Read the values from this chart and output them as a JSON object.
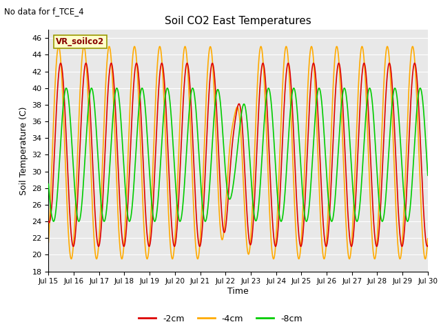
{
  "title": "Soil CO2 East Temperatures",
  "no_data_label": "No data for f_TCE_4",
  "legend_label": "VR_soilco2",
  "xlabel": "Time",
  "ylabel": "Soil Temperature (C)",
  "ylim": [
    18,
    47
  ],
  "yticks": [
    18,
    20,
    22,
    24,
    26,
    28,
    30,
    32,
    34,
    36,
    38,
    40,
    42,
    44,
    46
  ],
  "xtick_labels": [
    "Jul 15",
    "Jul 16",
    "Jul 17",
    "Jul 18",
    "Jul 19",
    "Jul 20",
    "Jul 21",
    "Jul 22",
    "Jul 23",
    "Jul 24",
    "Jul 25",
    "Jul 26",
    "Jul 27",
    "Jul 28",
    "Jul 29",
    "Jul 30"
  ],
  "color_2cm": "#dd0000",
  "color_4cm": "#ffaa00",
  "color_8cm": "#00cc00",
  "bg_color": "#e8e8e8",
  "line_width": 1.2,
  "min_2cm": 21.0,
  "max_2cm": 43.0,
  "min_4cm": 19.5,
  "max_4cm": 45.0,
  "min_8cm": 24.0,
  "max_8cm": 40.0,
  "phase_2cm": 0.23,
  "phase_4cm": 0.15,
  "phase_8cm": 0.45
}
